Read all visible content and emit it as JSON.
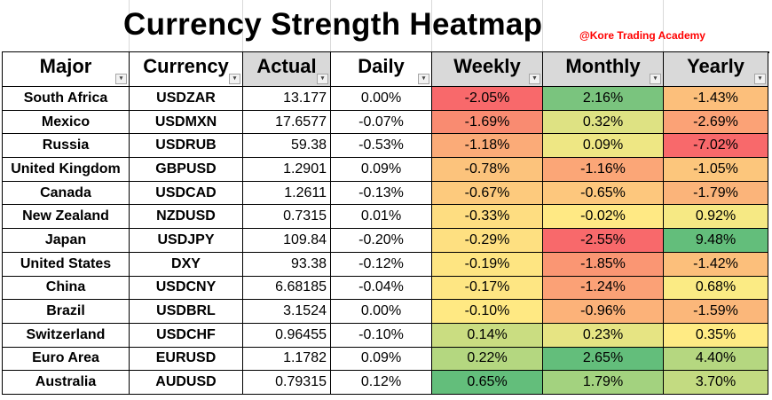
{
  "title": "Currency Strength Heatmap",
  "credit": "@Kore Trading Academy",
  "headers": [
    "Major",
    "Currency",
    "Actual",
    "Daily",
    "Weekly",
    "Monthly",
    "Yearly"
  ],
  "filter_icon": "filter-dropdown-icon",
  "sort_icon": "sort-descending-icon",
  "colors": {
    "header_gray": "#d9d9d9",
    "credit_red": "#ff0000",
    "heat_red": "#f8696b",
    "heat_yellow": "#ffeb84",
    "heat_green": "#63be7b"
  },
  "rows": [
    {
      "major": "South Africa",
      "currency": "USDZAR",
      "actual": "13.177",
      "daily": "0.00%",
      "weekly": "-2.05%",
      "monthly": "2.16%",
      "yearly": "-1.43%",
      "weekly_color": "#f8696b",
      "monthly_color": "#7ac47e",
      "yearly_color": "#fcbf7b"
    },
    {
      "major": "Mexico",
      "currency": "USDMXN",
      "actual": "17.6577",
      "daily": "-0.07%",
      "weekly": "-1.69%",
      "monthly": "0.32%",
      "yearly": "-2.69%",
      "weekly_color": "#f98b71",
      "monthly_color": "#dee283",
      "yearly_color": "#fba276"
    },
    {
      "major": "Russia",
      "currency": "USDRUB",
      "actual": "59.38",
      "daily": "-0.53%",
      "weekly": "-1.18%",
      "monthly": "0.09%",
      "yearly": "-7.02%",
      "weekly_color": "#fbab78",
      "monthly_color": "#eee784",
      "yearly_color": "#f8696b"
    },
    {
      "major": "United Kingdom",
      "currency": "GBPUSD",
      "actual": "1.2901",
      "daily": "0.09%",
      "weekly": "-0.78%",
      "monthly": "-1.16%",
      "yearly": "-1.05%",
      "weekly_color": "#fcc37c",
      "monthly_color": "#fba677",
      "yearly_color": "#fcc67c"
    },
    {
      "major": "Canada",
      "currency": "USDCAD",
      "actual": "1.2611",
      "daily": "-0.13%",
      "weekly": "-0.67%",
      "monthly": "-0.65%",
      "yearly": "-1.79%",
      "weekly_color": "#fdca7d",
      "monthly_color": "#fdc77d",
      "yearly_color": "#fbb47a"
    },
    {
      "major": "New Zealand",
      "currency": "NZDUSD",
      "actual": "0.7315",
      "daily": "0.01%",
      "weekly": "-0.33%",
      "monthly": "-0.02%",
      "yearly": "0.92%",
      "weekly_color": "#fedd81",
      "monthly_color": "#ffe984",
      "yearly_color": "#f6e984"
    },
    {
      "major": "Japan",
      "currency": "USDJPY",
      "actual": "109.84",
      "daily": "-0.20%",
      "weekly": "-0.29%",
      "monthly": "-2.55%",
      "yearly": "9.48%",
      "weekly_color": "#fee081",
      "monthly_color": "#f8696b",
      "yearly_color": "#63be7b"
    },
    {
      "major": "United States",
      "currency": "DXY",
      "actual": "93.38",
      "daily": "-0.12%",
      "weekly": "-0.19%",
      "monthly": "-1.85%",
      "yearly": "-1.42%",
      "weekly_color": "#fee582",
      "monthly_color": "#fa9673",
      "yearly_color": "#fcbf7b"
    },
    {
      "major": "China",
      "currency": "USDCNY",
      "actual": "6.68185",
      "daily": "-0.04%",
      "weekly": "-0.17%",
      "monthly": "-1.24%",
      "yearly": "0.68%",
      "weekly_color": "#fee683",
      "monthly_color": "#fba176",
      "yearly_color": "#fbeb84"
    },
    {
      "major": "Brazil",
      "currency": "USDBRL",
      "actual": "3.1524",
      "daily": "0.00%",
      "weekly": "-0.10%",
      "monthly": "-0.96%",
      "yearly": "-1.59%",
      "weekly_color": "#ffe983",
      "monthly_color": "#fcb279",
      "yearly_color": "#fbb77a"
    },
    {
      "major": "Switzerland",
      "currency": "USDCHF",
      "actual": "0.96455",
      "daily": "-0.10%",
      "weekly": "0.14%",
      "monthly": "0.23%",
      "yearly": "0.35%",
      "weekly_color": "#cadd81",
      "monthly_color": "#e6e483",
      "yearly_color": "#ffeb84"
    },
    {
      "major": "Euro Area",
      "currency": "EURUSD",
      "actual": "1.1782",
      "daily": "0.09%",
      "weekly": "0.22%",
      "monthly": "2.65%",
      "yearly": "4.40%",
      "weekly_color": "#b4d780",
      "monthly_color": "#63be7b",
      "yearly_color": "#b5d780"
    },
    {
      "major": "Australia",
      "currency": "AUDUSD",
      "actual": "0.79315",
      "daily": "0.12%",
      "weekly": "0.65%",
      "monthly": "1.79%",
      "yearly": "3.70%",
      "weekly_color": "#63be7b",
      "monthly_color": "#a3d27f",
      "yearly_color": "#c3db81"
    }
  ]
}
